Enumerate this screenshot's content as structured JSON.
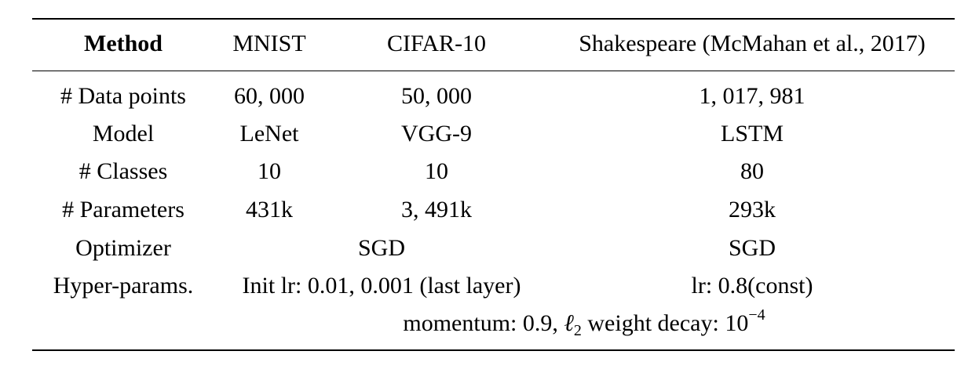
{
  "table": {
    "headers": [
      "Method",
      "MNIST",
      "CIFAR-10",
      "Shakespeare (McMahan et al., 2017)"
    ],
    "rows": [
      {
        "label": "# Data points",
        "mnist": "60, 000",
        "cifar": "50, 000",
        "shakespeare": "1, 017, 981"
      },
      {
        "label": "Model",
        "mnist": "LeNet",
        "cifar": "VGG-9",
        "shakespeare": "LSTM"
      },
      {
        "label": "# Classes",
        "mnist": "10",
        "cifar": "10",
        "shakespeare": "80"
      },
      {
        "label": "# Parameters",
        "mnist": "431k",
        "cifar": "3, 491k",
        "shakespeare": "293k"
      },
      {
        "label": "Optimizer",
        "mnist_cifar": "SGD",
        "shakespeare": "SGD"
      },
      {
        "label": "Hyper-params.",
        "mnist_cifar": "Init lr: 0.01, 0.001 (last layer)",
        "shakespeare": "lr: 0.8(const)"
      }
    ],
    "footer_row": {
      "prefix": "momentum: 0.9,",
      "ell": "ℓ",
      "ell_sub": "2",
      "mid": "weight decay: 10",
      "exp": "−4"
    }
  }
}
